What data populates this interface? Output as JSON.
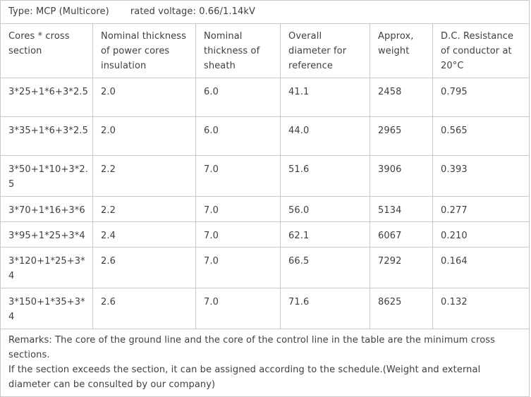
{
  "type_line": {
    "type": "Type: MCP (Multicore)",
    "voltage": "rated voltage: 0.66/1.14kV"
  },
  "columns": [
    "Cores * cross section",
    "Nominal thickness of power cores insulation",
    "Nominal thickness of sheath",
    "Overall diameter for reference",
    "Approx, weight",
    "D.C. Resistance of conductor at 20°C"
  ],
  "rows": [
    [
      "3*25+1*6+3*2.5",
      "2.0",
      "6.0",
      "41.1",
      "2458",
      "0.795"
    ],
    [
      "3*35+1*6+3*2.5",
      "2.0",
      "6.0",
      "44.0",
      "2965",
      "0.565"
    ],
    [
      "3*50+1*10+3*2.5",
      "2.2",
      "7.0",
      "51.6",
      "3906",
      "0.393"
    ],
    [
      "3*70+1*16+3*6",
      "2.2",
      "7.0",
      "56.0",
      "5134",
      "0.277"
    ],
    [
      "3*95+1*25+3*4",
      "2.4",
      "7.0",
      "62.1",
      "6067",
      "0.210"
    ],
    [
      "3*120+1*25+3*4",
      "2.6",
      "7.0",
      "66.5",
      "7292",
      "0.164"
    ],
    [
      "3*150+1*35+3*4",
      "2.6",
      "7.0",
      "71.6",
      "8625",
      "0.132"
    ]
  ],
  "remarks": {
    "line1": "Remarks: The core of the ground line and the core of the control line in the table are the minimum cross sections.",
    "line2": "If the section exceeds the section, it can be assigned according to the schedule.(Weight and external diameter can be consulted by our company)"
  }
}
